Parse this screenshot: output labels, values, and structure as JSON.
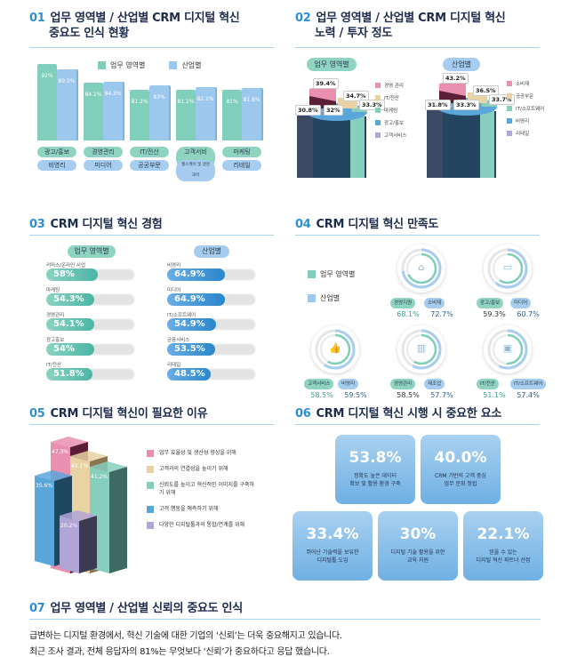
{
  "sections": {
    "s01": {
      "num": "01",
      "title_line1": "업무 영역별 / 산업별 CRM 디지털 혁신",
      "title_line2": "중요도 인식 현황",
      "legend": [
        {
          "label": "업무 영역별",
          "color": "#7fcfba"
        },
        {
          "label": "산업별",
          "color": "#9cc8ee"
        }
      ]
    },
    "s02": {
      "num": "02",
      "title_line1": "업무 영역별 / 산업별 CRM 디지털 혁신",
      "title_line2": "노력 / 투자 정도",
      "left_pill": "업무 영역별",
      "right_pill": "산업별"
    },
    "s03": {
      "num": "03",
      "title": "CRM 디지털 혁신 경험",
      "left_pill": "업무 영역별",
      "right_pill": "산업별"
    },
    "s04": {
      "num": "04",
      "title": "CRM 디지털 혁신 만족도",
      "legend": [
        {
          "label": "업무 영역별",
          "color": "#7fcfba"
        },
        {
          "label": "산업별",
          "color": "#9cc8ee"
        }
      ]
    },
    "s05": {
      "num": "05",
      "title": "CRM 디지털 혁신이 필요한 이유"
    },
    "s06": {
      "num": "06",
      "title": "CRM 디지털 혁신 시행 시 중요한 요소"
    },
    "s07": {
      "num": "07",
      "title": "업무 영역별 / 산업별 신뢰의 중요도 인식",
      "para1": "급변하는 디지털 환경에서, 혁신 기술에 대한 기업의 ‘신뢰’는 더욱 중요해지고 있습니다.",
      "para2": "최근 조사 결과, 전체 응답자의 81%는 무엇보다 ‘신뢰’가 중요하다고 응답 했습니다."
    }
  },
  "chart_data": [
    {
      "id": "s01",
      "type": "bar",
      "title": "업무 영역별 / 산업별 CRM 디지털 혁신 중요도 인식 현황",
      "series": [
        {
          "name": "업무 영역별",
          "categories": [
            "광고/홍보",
            "경영관리",
            "IT/전산",
            "고객서비스",
            "마케팅"
          ],
          "values": [
            92,
            84.1,
            81.2,
            81.1,
            81
          ],
          "labels": [
            "92%",
            "84.1%",
            "81.2%",
            "81.1%",
            "81%"
          ]
        },
        {
          "name": "산업별",
          "categories": [
            "비영리",
            "미디어",
            "공공부문",
            "헬스케어 및 생명과학",
            "리테일"
          ],
          "values": [
            89.5,
            84.3,
            83,
            82.1,
            81.8
          ],
          "labels": [
            "89.5%",
            "84.3%",
            "83%",
            "82.1%",
            "81.8%"
          ]
        }
      ],
      "legend_position": "top"
    },
    {
      "id": "s02-left",
      "type": "pie",
      "title": "업무 영역별",
      "categories": [
        "경영 관리",
        "IT/전산",
        "마케팅",
        "광고/홍보",
        "고객서비스"
      ],
      "values": [
        39.4,
        34.7,
        33.3,
        32,
        30.8
      ],
      "labels": [
        "39.4%",
        "34.7%",
        "33.3%",
        "32%",
        "30.8%"
      ],
      "colors": [
        "#e98fb0",
        "#e9d2a4",
        "#86cfbd",
        "#5aa6da",
        "#b1a4d6"
      ]
    },
    {
      "id": "s02-right",
      "type": "pie",
      "title": "산업별",
      "categories": [
        "소비재",
        "공공부문",
        "IT/소프트웨어",
        "비영리",
        "리테일"
      ],
      "values": [
        43.2,
        36.5,
        33.7,
        33.3,
        31.8
      ],
      "labels": [
        "43.2%",
        "36.5%",
        "33.7%",
        "33.3%",
        "31.8%"
      ],
      "colors": [
        "#e98fb0",
        "#e9d2a4",
        "#86cfbd",
        "#5aa6da",
        "#b1a4d6"
      ]
    },
    {
      "id": "s03-left",
      "type": "bar",
      "title": "업무 영역별",
      "categories": [
        "커머스/온라인 사업",
        "마케팅",
        "경영관리",
        "광고홍보",
        "IT/전산"
      ],
      "values": [
        58,
        54.3,
        54.1,
        54,
        51.8
      ],
      "labels": [
        "58%",
        "54.3%",
        "54.1%",
        "54%",
        "51.8%"
      ]
    },
    {
      "id": "s03-right",
      "type": "bar",
      "title": "산업별",
      "categories": [
        "비영리",
        "미디어",
        "IT/소프트웨어",
        "금융서비스",
        "리테일"
      ],
      "values": [
        64.9,
        64.9,
        54.9,
        53.5,
        48.5
      ],
      "labels": [
        "64.9%",
        "64.9%",
        "54.9%",
        "53.5%",
        "48.5%"
      ]
    },
    {
      "id": "s04",
      "type": "pie",
      "title": "CRM 디지털 혁신 만족도",
      "groups": [
        {
          "icon": "building-icon",
          "work_area": "경영지원",
          "work_value": "68.1%",
          "industry": "소비재",
          "industry_value": "72.7%"
        },
        {
          "icon": "monitor-icon",
          "work_area": "광고/홍보",
          "work_value": "59.3%",
          "industry": "미디어",
          "industry_value": "60.7%"
        },
        {
          "icon": "thumbs-up-icon",
          "work_area": "고객서비스",
          "work_value": "58.5%",
          "industry": "비영리",
          "industry_value": "59.5%"
        },
        {
          "icon": "chart-icon",
          "work_area": "경영관리",
          "work_value": "58.5%",
          "industry": "제조업",
          "industry_value": "57.7%"
        },
        {
          "icon": "screen-icon",
          "work_area": "IT/전산",
          "work_value": "51.1%",
          "industry": "IT/소프트웨어",
          "industry_value": "57.4%"
        }
      ]
    },
    {
      "id": "s05",
      "type": "bar",
      "title": "CRM 디지털 혁신이 필요한 이유",
      "categories": [
        "업무 효율성 및 생산성 향상을 위해",
        "고객과의 연결성을 높이기 위해",
        "신뢰도를 높이고 혁신적인 이미지를 구축하기 위해",
        "고객 행동을 예측하기 위해",
        "다양한 디지털툴과의 통합/연계를 위해"
      ],
      "values": [
        47.3,
        45.1,
        41.2,
        35.6,
        20.2
      ],
      "labels": [
        "47.3%",
        "45.1%",
        "41.2%",
        "35.6%",
        "20.2%"
      ],
      "colors": [
        "#e98fb0",
        "#e9d2a4",
        "#86cfbd",
        "#5aa6da",
        "#b1a4d6"
      ],
      "legend_position": "right"
    },
    {
      "id": "s06",
      "type": "table",
      "title": "CRM 디지털 혁신 시행 시 중요한 요소",
      "items": [
        {
          "value": "53.8%",
          "line1": "정확도 높은 데이터",
          "line2": "확보 및 활용 환경 구축"
        },
        {
          "value": "40.0%",
          "line1": "CRM 기반의 고객 중심",
          "line2": "업무 문화 정립"
        },
        {
          "value": "33.4%",
          "line1": "뛰어난 기술력을 보유한",
          "line2": "디지털툴 도입"
        },
        {
          "value": "30%",
          "line1": "디지털 기술 활용을 위한",
          "line2": "교육 지원"
        },
        {
          "value": "22.1%",
          "line1": "믿을 수 있는",
          "line2": "디지털 혁신 파트너 선정"
        }
      ]
    }
  ]
}
